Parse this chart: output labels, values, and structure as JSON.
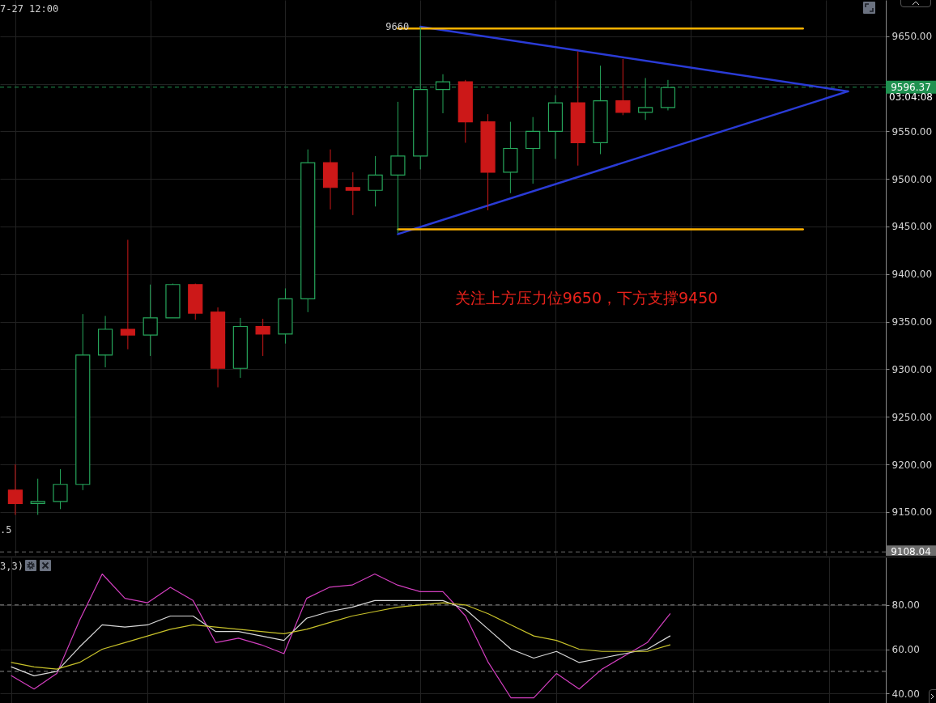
{
  "chart_data": [
    {
      "type": "candlestick",
      "annotations": [
        "7-27 12:00",
        {
          "text": "9660",
          "y": 9660
        },
        ".5",
        "03:04:08",
        "关注上方压力位9650，下方支撑9450"
      ],
      "categories": [
        null,
        null,
        null,
        null,
        null,
        null,
        null,
        null,
        null,
        null,
        null,
        null,
        null,
        null,
        null,
        null,
        null,
        null,
        null,
        null,
        null,
        null,
        null,
        null,
        null,
        null,
        null,
        null,
        null,
        null,
        null,
        null,
        null,
        null,
        null,
        null,
        null,
        null,
        null
      ],
      "ohlc": [
        [
          9173,
          9200,
          9147,
          9159
        ],
        [
          9159,
          9185,
          9147,
          9161
        ],
        [
          9161,
          9195,
          9153,
          9179
        ],
        [
          9179,
          9358,
          9173,
          9315
        ],
        [
          9315,
          9356,
          9302,
          9342
        ],
        [
          9342,
          9436,
          9321,
          9336
        ],
        [
          9336,
          9389,
          9314,
          9354
        ],
        [
          9354,
          9390,
          9354,
          9389
        ],
        [
          9389,
          9390,
          9352,
          9359
        ],
        [
          9360,
          9365,
          9281,
          9301
        ],
        [
          9301,
          9354,
          9291,
          9345
        ],
        [
          9345,
          9353,
          9314,
          9337
        ],
        [
          9337,
          9385,
          9327,
          9374
        ],
        [
          9374,
          9531,
          9360,
          9517
        ],
        [
          9517,
          9531,
          9468,
          9491
        ],
        [
          9491,
          9507,
          9462,
          9488
        ],
        [
          9488,
          9524,
          9471,
          9504
        ],
        [
          9504,
          9581,
          9443,
          9524
        ],
        [
          9524,
          9660,
          9510,
          9594
        ],
        [
          9594,
          9610,
          9569,
          9602
        ],
        [
          9602,
          9604,
          9538,
          9560
        ],
        [
          9560,
          9568,
          9467,
          9507
        ],
        [
          9507,
          9560,
          9485,
          9532
        ],
        [
          9532,
          9565,
          9495,
          9550
        ],
        [
          9550,
          9588,
          9521,
          9580
        ],
        [
          9580,
          9634,
          9514,
          9538
        ],
        [
          9538,
          9619,
          9526,
          9582
        ],
        [
          9582,
          9626,
          9567,
          9570
        ],
        [
          9570,
          9606,
          9562,
          9575
        ],
        [
          9575,
          9604,
          9572,
          9596
        ],
        null,
        null,
        null,
        null,
        null,
        null,
        null,
        null,
        null
      ],
      "colors": [
        "#cc1818",
        "#26a65b",
        "#26a65b",
        "#26a65b",
        "#26a65b",
        "#cc1818",
        "#26a65b",
        "#26a65b",
        "#cc1818",
        "#cc1818",
        "#26a65b",
        "#cc1818",
        "#26a65b",
        "#26a65b",
        "#cc1818",
        "#cc1818",
        "#26a65b",
        "#26a65b",
        "#26a65b",
        "#26a65b",
        "#cc1818",
        "#cc1818",
        "#26a65b",
        "#26a65b",
        "#26a65b",
        "#cc1818",
        "#26a65b",
        "#cc1818",
        "#26a65b",
        "#26a65b",
        null,
        null,
        null,
        null,
        null,
        null,
        null,
        null,
        null
      ],
      "series": [
        {
          "type": "line",
          "color": "#2a3bd6",
          "values": [
            null,
            null,
            null,
            null,
            null,
            null,
            null,
            null,
            null,
            null,
            null,
            null,
            null,
            null,
            null,
            null,
            null,
            null,
            9660,
            null,
            null,
            null,
            null,
            null,
            null,
            null,
            null,
            null,
            null,
            null,
            null,
            null,
            null,
            null,
            null,
            null,
            null,
            9592,
            null
          ]
        },
        {
          "type": "line",
          "color": "#2a3bd6",
          "values": [
            null,
            null,
            null,
            null,
            null,
            null,
            null,
            null,
            null,
            null,
            null,
            null,
            null,
            null,
            null,
            null,
            null,
            9442,
            null,
            null,
            null,
            null,
            null,
            null,
            null,
            null,
            null,
            null,
            null,
            null,
            null,
            null,
            null,
            null,
            null,
            null,
            null,
            9592,
            null
          ]
        },
        {
          "type": "line",
          "color": "#ffb300",
          "values": [
            null,
            null,
            null,
            null,
            null,
            null,
            null,
            null,
            null,
            null,
            null,
            null,
            null,
            null,
            null,
            null,
            null,
            9658,
            null,
            null,
            null,
            null,
            null,
            null,
            null,
            null,
            null,
            null,
            null,
            null,
            null,
            null,
            null,
            null,
            null,
            9658,
            null,
            null,
            null
          ]
        },
        {
          "type": "line",
          "color": "#ffb300",
          "values": [
            null,
            null,
            null,
            null,
            null,
            null,
            null,
            null,
            null,
            null,
            null,
            null,
            null,
            null,
            null,
            null,
            null,
            9447,
            null,
            null,
            null,
            null,
            null,
            null,
            null,
            null,
            null,
            null,
            null,
            null,
            null,
            null,
            null,
            null,
            null,
            9447,
            null,
            null,
            null
          ]
        }
      ],
      "ylim": [
        9104,
        9688
      ],
      "yticks": [
        {
          "value": 9150,
          "label": "9150.00"
        },
        {
          "value": 9200,
          "label": "9200.00"
        },
        {
          "value": 9250,
          "label": "9250.00"
        },
        {
          "value": 9300,
          "label": "9300.00"
        },
        {
          "value": 9350,
          "label": "9350.00"
        },
        {
          "value": 9400,
          "label": "9400.00"
        },
        {
          "value": 9450,
          "label": "9450.00"
        },
        {
          "value": 9500,
          "label": "9500.00"
        },
        {
          "value": 9550,
          "label": "9550.00"
        },
        {
          "value": 9600,
          "label": null
        },
        {
          "value": 9650,
          "label": "9650.00"
        }
      ],
      "ref_lines": [
        {
          "axis": "y",
          "value": 9596.37,
          "label": "9596.37",
          "color": "#1f9150",
          "line_style": "dashed"
        },
        {
          "axis": "y",
          "value": 9108.04,
          "label": "9108.04",
          "color": "#6e6e6e",
          "line_style": "dashed"
        }
      ],
      "grid": true,
      "tick_labels": "y"
    },
    {
      "type": "line",
      "title": "3,3)",
      "categories": [
        null,
        null,
        null,
        null,
        null,
        null,
        null,
        null,
        null,
        null,
        null,
        null,
        null,
        null,
        null,
        null,
        null,
        null,
        null,
        null,
        null,
        null,
        null,
        null,
        null,
        null,
        null,
        null,
        null,
        null,
        null,
        null,
        null,
        null,
        null,
        null,
        null,
        null,
        null
      ],
      "series": [
        {
          "color": "#d43fc0",
          "values": [
            48,
            42,
            49,
            73,
            94,
            83,
            81,
            88,
            82,
            63,
            65,
            62,
            58,
            83,
            88,
            89,
            94,
            89,
            86,
            86,
            75,
            54,
            38,
            38,
            49,
            42,
            51,
            57,
            63,
            76,
            null,
            null,
            null,
            null,
            null,
            null,
            null,
            null,
            null
          ]
        },
        {
          "color": "#d9d9d9",
          "values": [
            52,
            48,
            50,
            61,
            71,
            70,
            71,
            75,
            75,
            68,
            68,
            66,
            64,
            74,
            77,
            79,
            82,
            82,
            82,
            82,
            78,
            69,
            60,
            56,
            59,
            54,
            56,
            58,
            60,
            66,
            null,
            null,
            null,
            null,
            null,
            null,
            null,
            null,
            null
          ]
        },
        {
          "color": "#c8c22a",
          "values": [
            54,
            52,
            51,
            54,
            60,
            63,
            66,
            69,
            71,
            70,
            69,
            68,
            67,
            69,
            72,
            75,
            77,
            79,
            80,
            81,
            80,
            76,
            71,
            66,
            64,
            60,
            59,
            59,
            59,
            62,
            null,
            null,
            null,
            null,
            null,
            null,
            null,
            null,
            null
          ]
        }
      ],
      "ylim": [
        35.7,
        101.5
      ],
      "yticks": [
        {
          "value": 40,
          "label": "40.00"
        },
        {
          "value": 60,
          "label": "60.00"
        },
        {
          "value": 80,
          "label": "80.00"
        }
      ],
      "ref_lines": [
        {
          "axis": "y",
          "value": 80,
          "color": "#8c8c8c",
          "line_style": "dashed"
        },
        {
          "axis": "y",
          "value": 50,
          "color": "#8c8c8c",
          "line_style": "dashed"
        }
      ],
      "grid": true,
      "tick_labels": "y"
    }
  ]
}
